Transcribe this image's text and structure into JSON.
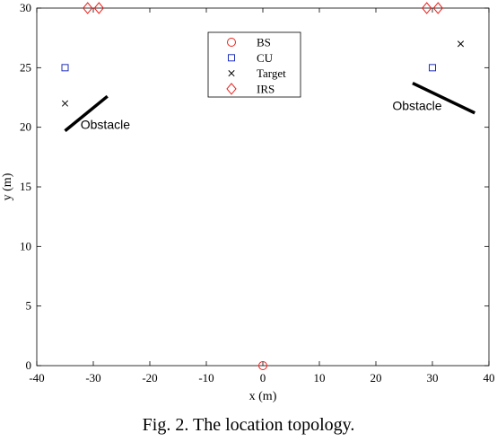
{
  "caption": "Fig. 2. The location topology.",
  "chart_data": {
    "type": "scatter",
    "xlabel": "x (m)",
    "ylabel": "y (m)",
    "xlim": [
      -40,
      40
    ],
    "ylim": [
      0,
      30
    ],
    "xticks": [
      -40,
      -30,
      -20,
      -10,
      0,
      10,
      20,
      30,
      40
    ],
    "yticks": [
      0,
      5,
      10,
      15,
      20,
      25,
      30
    ],
    "grid": false,
    "legend_position": "top-center",
    "series": [
      {
        "name": "BS",
        "marker": "circle",
        "color": "#e8231e",
        "points": [
          [
            0,
            0
          ]
        ]
      },
      {
        "name": "CU",
        "marker": "square",
        "color": "#1f2fb8",
        "points": [
          [
            -35,
            25
          ],
          [
            30,
            25
          ]
        ]
      },
      {
        "name": "Target",
        "marker": "x",
        "color": "#000000",
        "points": [
          [
            -35,
            22
          ],
          [
            35,
            27
          ]
        ]
      },
      {
        "name": "IRS",
        "marker": "diamond",
        "color": "#e8231e",
        "points": [
          [
            -31,
            30
          ],
          [
            -29,
            30
          ],
          [
            29,
            30
          ],
          [
            31,
            30
          ]
        ]
      }
    ],
    "obstacles": [
      {
        "label": "Obstacle",
        "from": [
          -35,
          19.7
        ],
        "to": [
          -27.5,
          22.6
        ]
      },
      {
        "label": "Obstacle",
        "from": [
          26.5,
          23.7
        ],
        "to": [
          37.5,
          21.2
        ]
      }
    ]
  }
}
